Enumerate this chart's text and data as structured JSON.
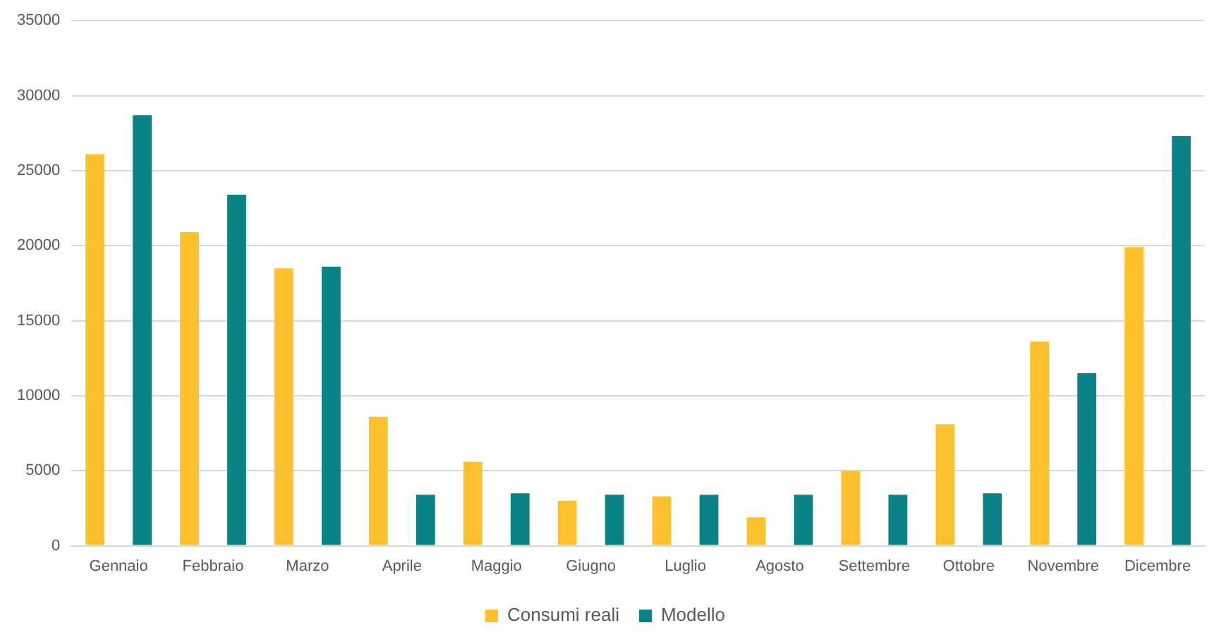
{
  "chart_data": {
    "type": "bar",
    "categories": [
      "Gennaio",
      "Febbraio",
      "Marzo",
      "Aprile",
      "Maggio",
      "Giugno",
      "Luglio",
      "Agosto",
      "Settembre",
      "Ottobre",
      "Novembre",
      "Dicembre"
    ],
    "series": [
      {
        "name": "Consumi reali",
        "color": "#fcc12d",
        "values": [
          26100,
          20900,
          18500,
          8600,
          5600,
          3000,
          3300,
          1900,
          5000,
          8100,
          13600,
          19900
        ]
      },
      {
        "name": "Modello",
        "color": "#0a8286",
        "values": [
          28700,
          23400,
          18600,
          3400,
          3500,
          3400,
          3400,
          3400,
          3400,
          3500,
          11500,
          27300
        ]
      }
    ],
    "ylim": [
      0,
      35000
    ],
    "yticks": [
      0,
      5000,
      10000,
      15000,
      20000,
      25000,
      30000,
      35000
    ],
    "grid": "y",
    "legend": "bottom"
  }
}
